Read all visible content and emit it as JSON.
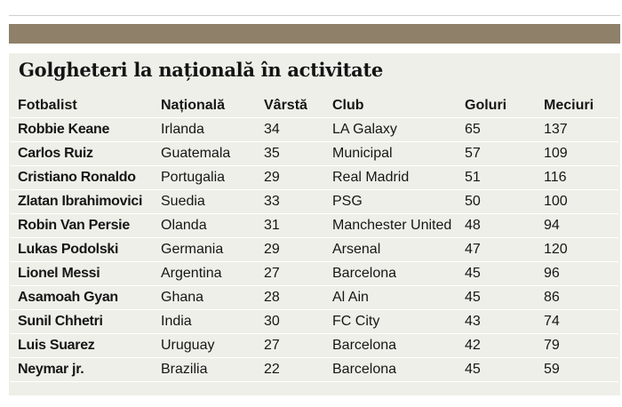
{
  "article": {
    "title": "Golgheteri la națională în activitate"
  },
  "table": {
    "headers": {
      "player": "Fotbalist",
      "nationality": "Națională",
      "age": "Vârstă",
      "club": "Club",
      "goals": "Goluri",
      "matches": "Meciuri"
    },
    "rows": [
      {
        "player": "Robbie Keane",
        "nationality": "Irlanda",
        "age": "34",
        "club": "LA Galaxy",
        "goals": "65",
        "matches": "137"
      },
      {
        "player": "Carlos Ruiz",
        "nationality": "Guatemala",
        "age": "35",
        "club": "Municipal",
        "goals": "57",
        "matches": "109"
      },
      {
        "player": "Cristiano Ronaldo",
        "nationality": "Portugalia",
        "age": "29",
        "club": "Real Madrid",
        "goals": "51",
        "matches": "116"
      },
      {
        "player": "Zlatan Ibrahimovici",
        "nationality": "Suedia",
        "age": "33",
        "club": "PSG",
        "goals": "50",
        "matches": "100"
      },
      {
        "player": "Robin Van Persie",
        "nationality": "Olanda",
        "age": "31",
        "club": "Manchester United",
        "goals": "48",
        "matches": "94"
      },
      {
        "player": "Lukas Podolski",
        "nationality": "Germania",
        "age": "29",
        "club": "Arsenal",
        "goals": "47",
        "matches": "120"
      },
      {
        "player": "Lionel Messi",
        "nationality": "Argentina",
        "age": "27",
        "club": "Barcelona",
        "goals": "45",
        "matches": "96"
      },
      {
        "player": "Asamoah Gyan",
        "nationality": "Ghana",
        "age": "28",
        "club": "Al Ain",
        "goals": "45",
        "matches": "86"
      },
      {
        "player": "Sunil Chhetri",
        "nationality": "India",
        "age": "30",
        "club": "FC City",
        "goals": "43",
        "matches": "74"
      },
      {
        "player": "Luis Suarez",
        "nationality": "Uruguay",
        "age": "27",
        "club": "Barcelona",
        "goals": "42",
        "matches": "79"
      },
      {
        "player": "Neymar jr.",
        "nationality": "Brazilia",
        "age": "22",
        "club": "Barcelona",
        "goals": "45",
        "matches": "59"
      }
    ]
  },
  "colors": {
    "band": "#8e8069",
    "panel": "#efefe9"
  }
}
